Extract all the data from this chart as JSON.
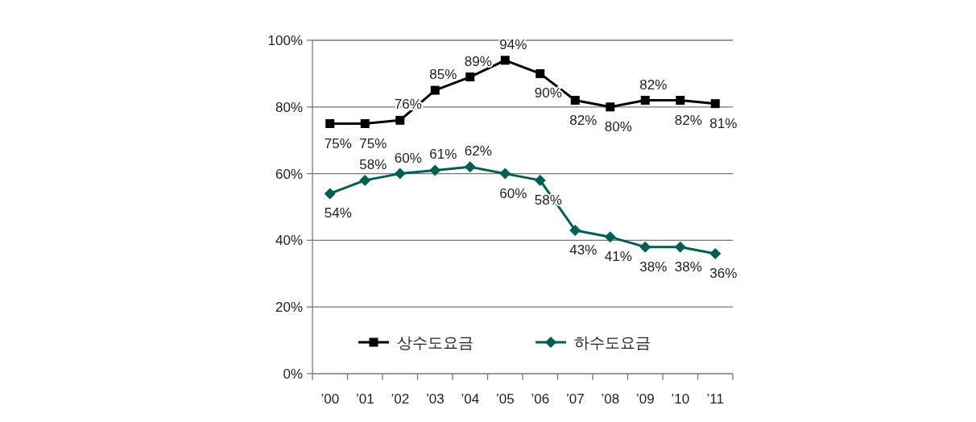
{
  "chart_data": {
    "type": "line",
    "categories": [
      "’00",
      "’01",
      "’02",
      "’03",
      "’04",
      "’05",
      "’06",
      "’07",
      "’08",
      "’09",
      "’10",
      "’11"
    ],
    "series": [
      {
        "name": "상수도요금",
        "color": "#000000",
        "marker": "square",
        "values": [
          75,
          75,
          76,
          85,
          89,
          94,
          90,
          82,
          80,
          82,
          82,
          81
        ],
        "value_labels": [
          "75%",
          "75%",
          "76%",
          "85%",
          "89%",
          "94%",
          "90%",
          "82%",
          "80%",
          "82%",
          "82%",
          "81%"
        ]
      },
      {
        "name": "하수도요금",
        "color": "#005f55",
        "marker": "diamond",
        "values": [
          54,
          58,
          60,
          61,
          62,
          60,
          58,
          43,
          41,
          38,
          38,
          36
        ],
        "value_labels": [
          "54%",
          "58%",
          "60%",
          "61%",
          "62%",
          "60%",
          "58%",
          "43%",
          "41%",
          "38%",
          "38%",
          "36%"
        ]
      }
    ],
    "ylim": [
      0,
      100
    ],
    "yticks": [
      {
        "value": 0,
        "label": "0%"
      },
      {
        "value": 20,
        "label": "20%"
      },
      {
        "value": 40,
        "label": "40%"
      },
      {
        "value": 60,
        "label": "60%"
      },
      {
        "value": 80,
        "label": "80%"
      },
      {
        "value": 100,
        "label": "100%"
      }
    ],
    "grid": "y",
    "legend": "bottom",
    "line_style": "solid"
  }
}
